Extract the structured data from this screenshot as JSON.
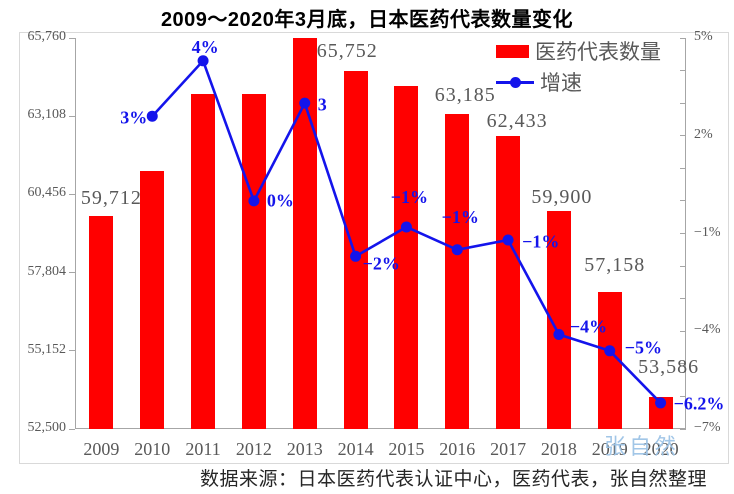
{
  "chart_data": {
    "type": "bar+line",
    "title": "2009～2020年3月底，日本医药代表数量变化",
    "categories": [
      "2009",
      "2010",
      "2011",
      "2012",
      "2013",
      "2014",
      "2015",
      "2016",
      "2017",
      "2018",
      "2019",
      "2020"
    ],
    "series": [
      {
        "name": "医药代表数量",
        "type": "bar",
        "axis": "left",
        "values": [
          59712,
          61246,
          63875,
          63846,
          65752,
          64657,
          64135,
          63185,
          62433,
          59900,
          57158,
          53586
        ],
        "data_labels": [
          "59,712",
          null,
          null,
          null,
          "65,752",
          null,
          null,
          "63,185",
          "62,433",
          "59,900",
          "57,158",
          "53,586"
        ]
      },
      {
        "name": "增速",
        "type": "line",
        "axis": "right",
        "values": [
          null,
          2.6,
          4.3,
          0.0,
          3.0,
          -1.7,
          -0.8,
          -1.5,
          -1.2,
          -4.1,
          -4.6,
          -6.2
        ],
        "data_labels": [
          null,
          "3%",
          "4%",
          "0%",
          "3",
          "−2%",
          "−1%",
          "−1%",
          "−1%",
          "−4%",
          "−5%",
          "−6.2%"
        ]
      }
    ],
    "left_axis": {
      "min": 52500,
      "max": 65760,
      "step": 2652,
      "tick_labels": [
        "65,760",
        "63,108",
        "60,456",
        "57,804",
        "55,152",
        "52,500"
      ]
    },
    "right_axis": {
      "min": -7,
      "max": 5,
      "major_step": 3,
      "minor_step": 1,
      "tick_labels": [
        "5%",
        "2%",
        "−1%",
        "−4%",
        "−7%"
      ]
    },
    "legend_position": "top-right-inside",
    "grid": false
  },
  "source_note": "数据来源：日本医药代表认证中心，医药代表，张自然整理",
  "watermark": "张自然",
  "colors": {
    "bar": "#FF0000",
    "line": "#1414EB",
    "growth_label": "#1414EB",
    "axis_text": "#595959",
    "value_label": "#595959",
    "legend_text": "#595959",
    "axis_line": "#A6A6A6",
    "frame_border": "#D9D9D9",
    "title": "#000000",
    "source_text": "#262626",
    "watermark": "#9DC3E6"
  }
}
